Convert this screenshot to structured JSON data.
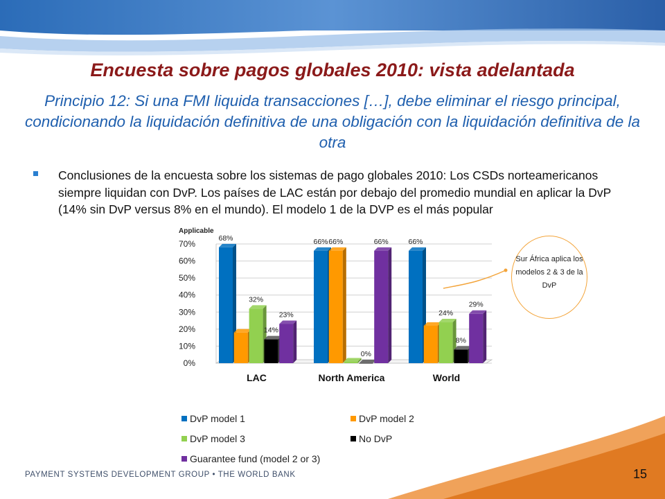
{
  "slide": {
    "title": "Encuesta sobre pagos globales 2010: vista adelantada",
    "subtitle": "Principio 12: Si una FMI liquida transacciones […], debe eliminar el riesgo principal, condicionando la liquidación definitiva de una obligación con la liquidación definitiva de la otra",
    "bullet": "Conclusiones de la encuesta sobre los sistemas de pago globales 2010: Los CSDs norteamericanos siempre liquidan con DvP. Los países de LAC están por debajo del promedio mundial en aplicar la DvP (14% sin DvP versus 8% en el mundo). El modelo 1 de la DVP es el más popular",
    "callout": "Sur África aplica los modelos 2 & 3 de la DvP",
    "footer": "PAYMENT SYSTEMS DEVELOPMENT GROUP • THE WORLD BANK",
    "page_number": "15",
    "colors": {
      "title": "#8b1a1a",
      "subtitle": "#1f5fae",
      "callout_border": "#f3a43a"
    }
  },
  "chart_data": {
    "type": "bar",
    "categories": [
      "LAC",
      "North America",
      "World"
    ],
    "series": [
      {
        "name": "DvP model 1",
        "values": [
          68,
          66,
          66
        ],
        "color": "#0070c0"
      },
      {
        "name": "DvP model 2",
        "values": [
          18,
          66,
          22
        ],
        "color": "#ff9900"
      },
      {
        "name": "DvP model 3",
        "values": [
          32,
          1,
          24
        ],
        "color": "#92d050"
      },
      {
        "name": "No DvP",
        "values": [
          14,
          0,
          8
        ],
        "color": "#000000"
      },
      {
        "name": "Guarantee fund (model 2 or 3)",
        "values": [
          23,
          66,
          29
        ],
        "color": "#7030a0"
      }
    ],
    "data_labels": [
      [
        "68%",
        "",
        "32%",
        "14%",
        "23%"
      ],
      [
        "66%",
        "66%",
        "",
        "0%",
        "66%"
      ],
      [
        "66%",
        "",
        "24%",
        "8%",
        "29%"
      ]
    ],
    "yticks": [
      "0%",
      "10%",
      "20%",
      "30%",
      "40%",
      "50%",
      "60%",
      "70%"
    ],
    "ylim": [
      0,
      70
    ],
    "top_label": "Applicable",
    "grid": true,
    "legend_position": "bottom"
  }
}
